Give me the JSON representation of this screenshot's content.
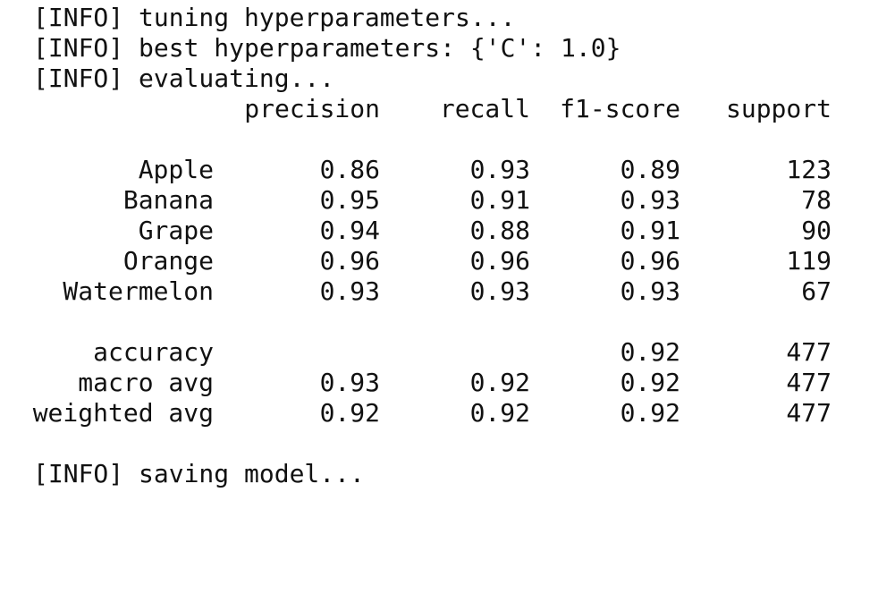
{
  "log": {
    "tuning": "[INFO] tuning hyperparameters...",
    "best": "[INFO] best hyperparameters: {'C': 1.0}",
    "evaluating": "[INFO] evaluating...",
    "saving": "[INFO] saving model..."
  },
  "report": {
    "headers": {
      "precision": "precision",
      "recall": "recall",
      "f1": "f1-score",
      "support": "support"
    },
    "classes": [
      {
        "label": "Apple",
        "precision": "0.86",
        "recall": "0.93",
        "f1": "0.89",
        "support": "123"
      },
      {
        "label": "Banana",
        "precision": "0.95",
        "recall": "0.91",
        "f1": "0.93",
        "support": "78"
      },
      {
        "label": "Grape",
        "precision": "0.94",
        "recall": "0.88",
        "f1": "0.91",
        "support": "90"
      },
      {
        "label": "Orange",
        "precision": "0.96",
        "recall": "0.96",
        "f1": "0.96",
        "support": "119"
      },
      {
        "label": "Watermelon",
        "precision": "0.93",
        "recall": "0.93",
        "f1": "0.93",
        "support": "67"
      }
    ],
    "accuracy": {
      "label": "accuracy",
      "f1": "0.92",
      "support": "477"
    },
    "macro": {
      "label": "macro avg",
      "precision": "0.93",
      "recall": "0.92",
      "f1": "0.92",
      "support": "477"
    },
    "weighted": {
      "label": "weighted avg",
      "precision": "0.92",
      "recall": "0.92",
      "f1": "0.92",
      "support": "477"
    }
  }
}
